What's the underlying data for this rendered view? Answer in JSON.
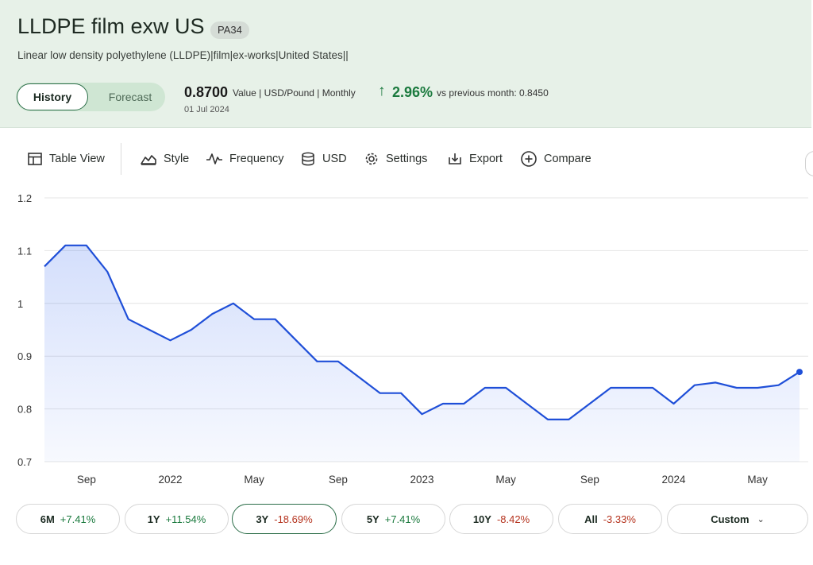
{
  "header": {
    "title": "LLDPE film exw US",
    "code": "PA34",
    "subtitle": "Linear low density polyethylene (LLDPE)|film|ex-works|United States||",
    "tabs": {
      "history": "History",
      "forecast": "Forecast"
    },
    "value": "0.8700",
    "value_meta": "Value | USD/Pound | Monthly",
    "date": "01 Jul 2024",
    "change_pct": "2.96%",
    "vs_prev": "vs previous month: 0.8450"
  },
  "toolbar": {
    "table_view": "Table View",
    "style": "Style",
    "frequency": "Frequency",
    "currency": "USD",
    "settings": "Settings",
    "export": "Export",
    "compare": "Compare"
  },
  "colors": {
    "line": "#1f4fd8",
    "positive": "#1b7a3e",
    "negative": "#b5331e",
    "accent": "#2c6e49"
  },
  "chart_data": {
    "type": "area",
    "title": "",
    "xlabel": "",
    "ylabel": "",
    "ylim": [
      0.7,
      1.2
    ],
    "yticks": [
      "1.2",
      "1.1",
      "1",
      "0.9",
      "0.8",
      "0.7"
    ],
    "grid": true,
    "x_tick_labels": [
      "Sep",
      "2022",
      "May",
      "Sep",
      "2023",
      "May",
      "Sep",
      "2024",
      "May"
    ],
    "x": [
      "2021-07",
      "2021-08",
      "2021-09",
      "2021-10",
      "2021-11",
      "2021-12",
      "2022-01",
      "2022-02",
      "2022-03",
      "2022-04",
      "2022-05",
      "2022-06",
      "2022-07",
      "2022-08",
      "2022-09",
      "2022-10",
      "2022-11",
      "2022-12",
      "2023-01",
      "2023-02",
      "2023-03",
      "2023-04",
      "2023-05",
      "2023-06",
      "2023-07",
      "2023-08",
      "2023-09",
      "2023-10",
      "2023-11",
      "2023-12",
      "2024-01",
      "2024-02",
      "2024-03",
      "2024-04",
      "2024-05",
      "2024-06",
      "2024-07"
    ],
    "series": [
      {
        "values": [
          1.07,
          1.11,
          1.11,
          1.06,
          0.97,
          0.95,
          0.93,
          0.95,
          0.98,
          1.0,
          0.97,
          0.97,
          0.93,
          0.89,
          0.89,
          0.86,
          0.83,
          0.83,
          0.79,
          0.81,
          0.81,
          0.84,
          0.84,
          0.81,
          0.78,
          0.78,
          0.81,
          0.84,
          0.84,
          0.84,
          0.81,
          0.845,
          0.85,
          0.84,
          0.84,
          0.845,
          0.87
        ]
      }
    ]
  },
  "ranges": [
    {
      "label": "6M",
      "change": "+7.41%",
      "sign": "pos"
    },
    {
      "label": "1Y",
      "change": "+11.54%",
      "sign": "pos"
    },
    {
      "label": "3Y",
      "change": "-18.69%",
      "sign": "neg",
      "active": true
    },
    {
      "label": "5Y",
      "change": "+7.41%",
      "sign": "pos"
    },
    {
      "label": "10Y",
      "change": "-8.42%",
      "sign": "neg"
    },
    {
      "label": "All",
      "change": "-3.33%",
      "sign": "neg"
    }
  ],
  "custom_label": "Custom"
}
